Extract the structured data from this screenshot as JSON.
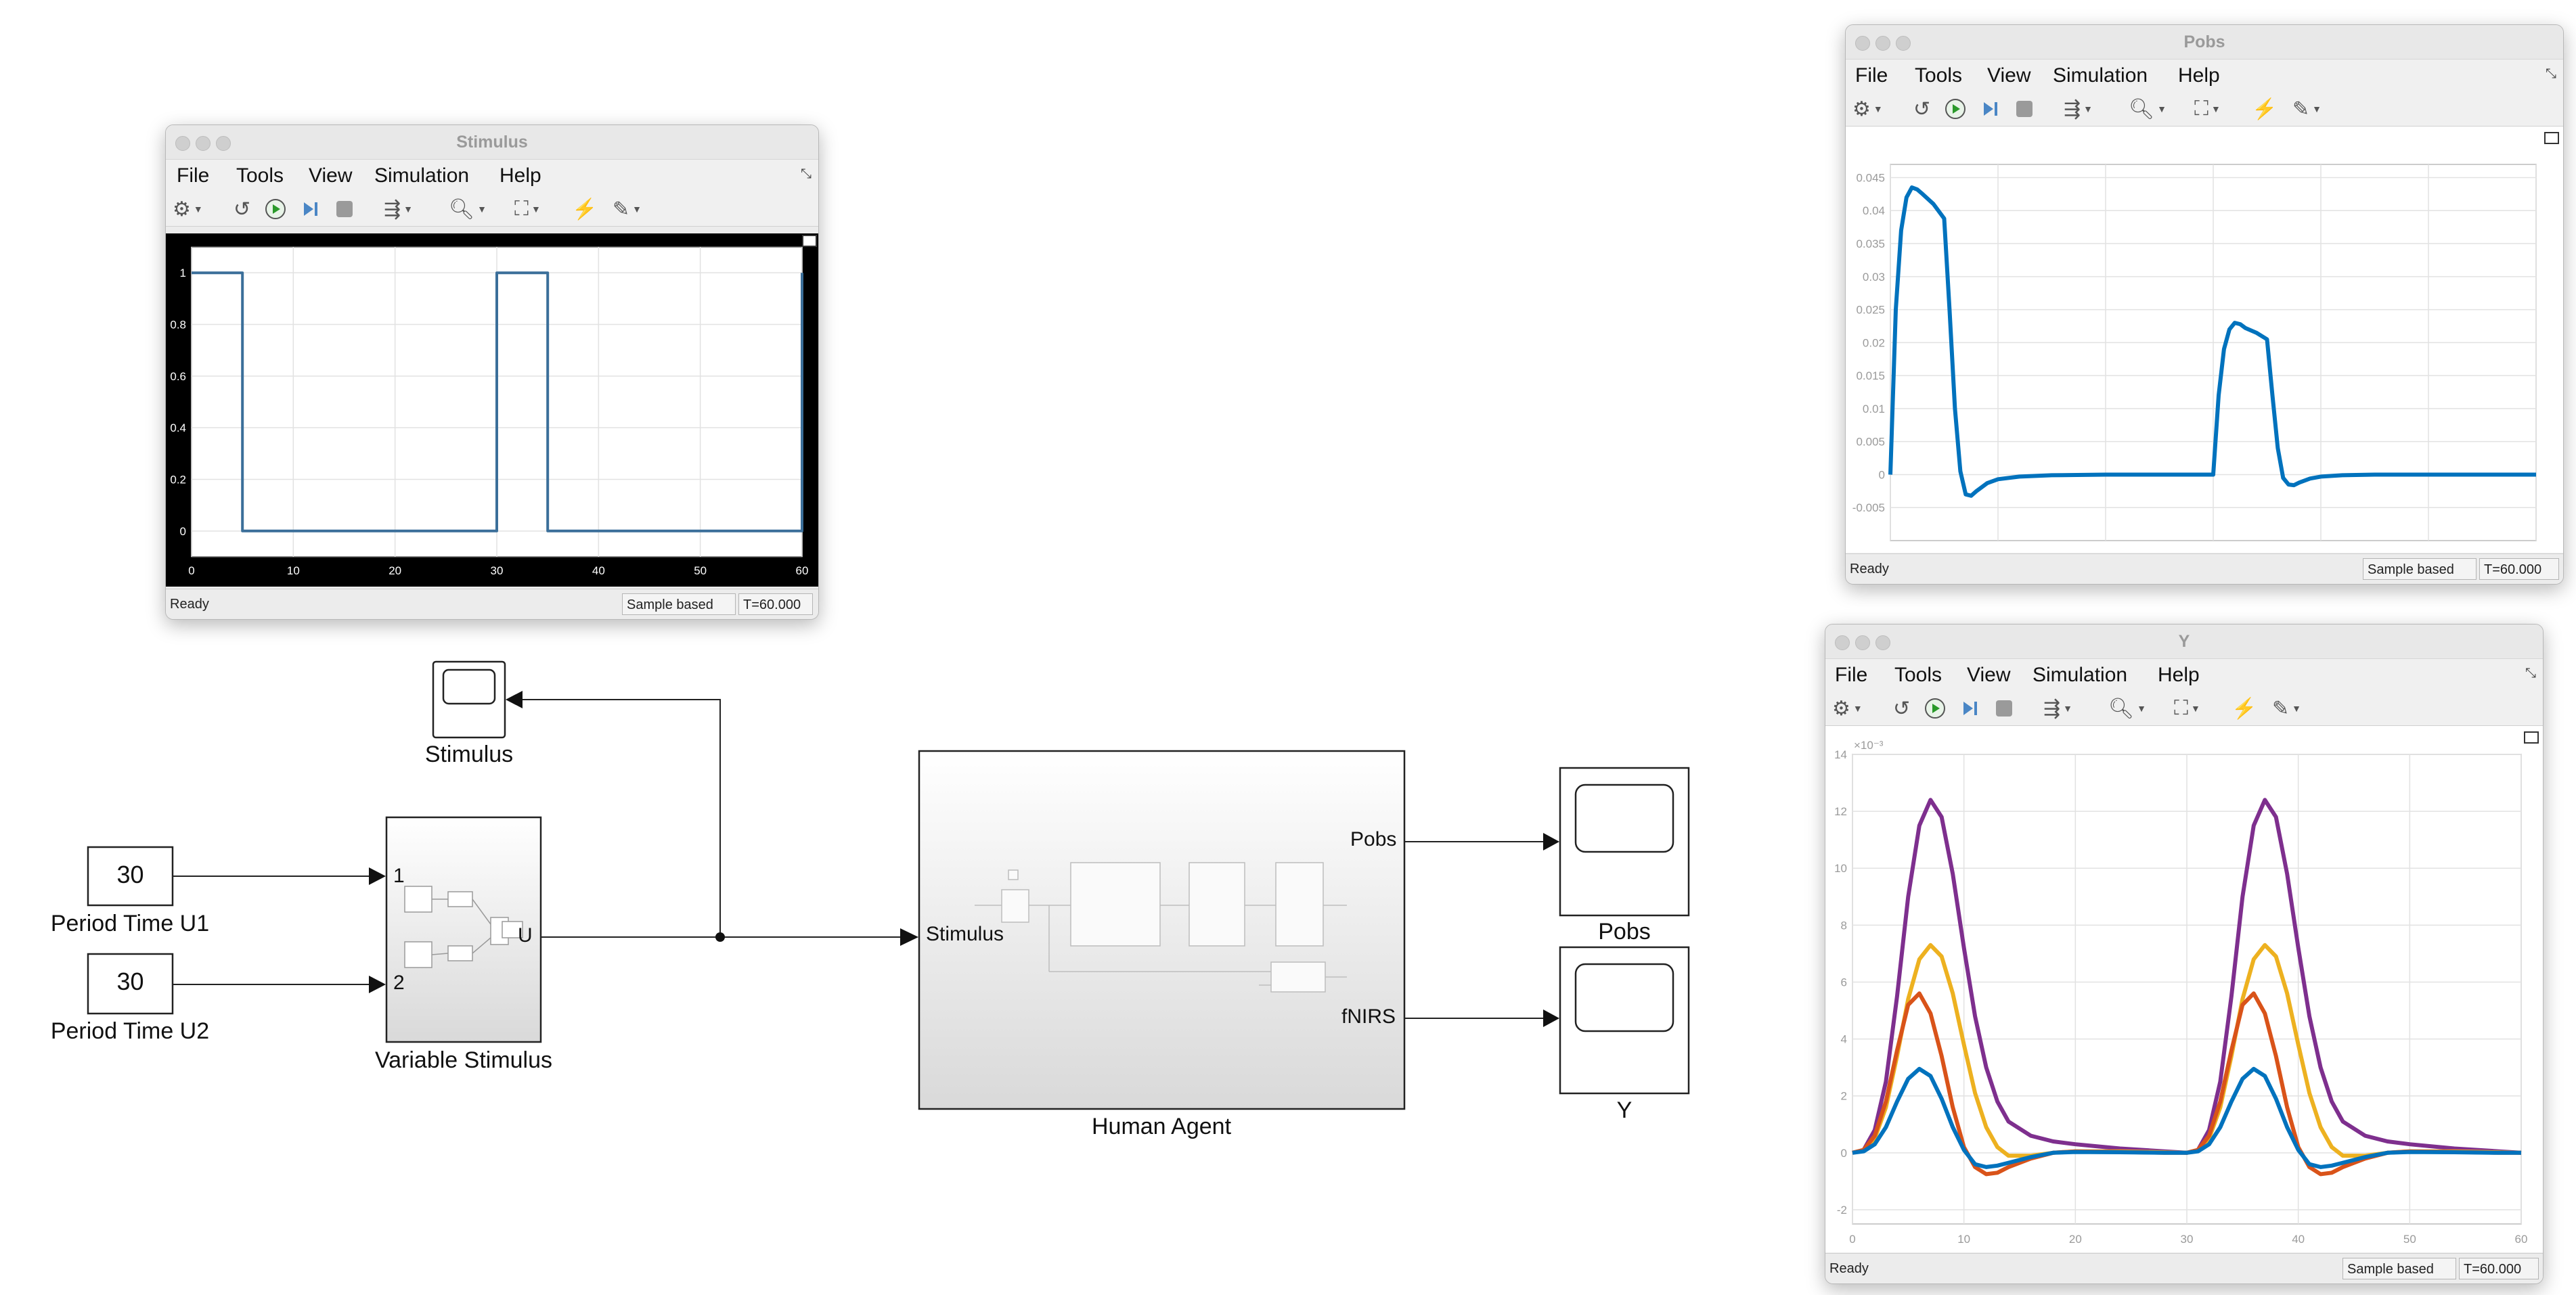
{
  "menu": [
    "File",
    "Tools",
    "View",
    "Simulation",
    "Help"
  ],
  "toolbar_icons": [
    "settings-icon",
    "restore-icon",
    "run-icon",
    "step-forward-icon",
    "stop-icon",
    "highlight-icon",
    "zoom-icon",
    "autoscale-icon",
    "triggers-icon",
    "measurements-icon"
  ],
  "windows": {
    "stimulus": {
      "title": "Stimulus",
      "status": {
        "ready": "Ready",
        "sample": "Sample based",
        "time": "T=60.000"
      },
      "xticks": [
        "0",
        "10",
        "20",
        "30",
        "40",
        "50",
        "60"
      ],
      "yticks": [
        "0",
        "0.2",
        "0.4",
        "0.6",
        "0.8",
        "1"
      ]
    },
    "pobs": {
      "title": "Pobs",
      "status": {
        "ready": "Ready",
        "sample": "Sample based",
        "time": "T=60.000"
      },
      "xticks": [
        "0",
        "10",
        "20",
        "30",
        "40",
        "50",
        "60"
      ],
      "yticks": [
        "-0.005",
        "0",
        "0.005",
        "0.01",
        "0.015",
        "0.02",
        "0.025",
        "0.03",
        "0.035",
        "0.04",
        "0.045"
      ]
    },
    "y": {
      "title": "Y",
      "status": {
        "ready": "Ready",
        "sample": "Sample based",
        "time": "T=60.000"
      },
      "xticks": [
        "0",
        "10",
        "20",
        "30",
        "40",
        "50",
        "60"
      ],
      "yticks": [
        "-2",
        "0",
        "2",
        "4",
        "6",
        "8",
        "10",
        "12",
        "14"
      ],
      "exponent": "×10⁻³"
    }
  },
  "blocks": {
    "const1": {
      "value": "30",
      "label": "Period Time U1"
    },
    "const2": {
      "value": "30",
      "label": "Period Time U2"
    },
    "variable_stimulus": {
      "label": "Variable Stimulus",
      "in1": "1",
      "in2": "2",
      "out": "U"
    },
    "stimulus_scope": {
      "label": "Stimulus"
    },
    "human_agent": {
      "label": "Human Agent",
      "in": "Stimulus",
      "out1": "Pobs",
      "out2": "fNIRS"
    },
    "pobs_scope": {
      "label": "Pobs"
    },
    "y_scope": {
      "label": "Y"
    }
  },
  "chart_data": [
    {
      "type": "line",
      "title": "Stimulus",
      "xlim": [
        0,
        60
      ],
      "ylim": [
        -0.1,
        1.1
      ],
      "grid": true,
      "background": "#000000",
      "series": [
        {
          "color": "#3b6f9a",
          "x": [
            0,
            5,
            5,
            30,
            30,
            35,
            35,
            60,
            60
          ],
          "y": [
            1,
            1,
            0,
            0,
            1,
            1,
            0,
            0,
            1
          ]
        }
      ]
    },
    {
      "type": "line",
      "title": "Pobs",
      "xlim": [
        0,
        60
      ],
      "ylim": [
        -0.01,
        0.047
      ],
      "grid": true,
      "series": [
        {
          "color": "#0072bd",
          "x": [
            0,
            0.5,
            1,
            1.5,
            2,
            2.5,
            3,
            4,
            5,
            5.5,
            6,
            6.5,
            7,
            7.5,
            8,
            9,
            10,
            12,
            15,
            20,
            25,
            30,
            30.5,
            31,
            31.5,
            32,
            32.5,
            33,
            34,
            35,
            35.5,
            36,
            36.5,
            37,
            37.5,
            38,
            39,
            40,
            42,
            45,
            50,
            55,
            60
          ],
          "y": [
            0,
            0.025,
            0.037,
            0.042,
            0.0435,
            0.0432,
            0.0425,
            0.041,
            0.0388,
            0.025,
            0.01,
            0.0005,
            -0.003,
            -0.0032,
            -0.0025,
            -0.0013,
            -0.0007,
            -0.0003,
            -0.0001,
            0,
            0,
            0,
            0.012,
            0.019,
            0.022,
            0.023,
            0.0228,
            0.0222,
            0.0215,
            0.0205,
            0.012,
            0.004,
            -0.0005,
            -0.0015,
            -0.0016,
            -0.0012,
            -0.0006,
            -0.0003,
            -0.0001,
            0,
            0,
            0,
            0
          ]
        }
      ]
    },
    {
      "type": "line",
      "title": "Y",
      "xlim": [
        0,
        60
      ],
      "ylim": [
        -2.5,
        14
      ],
      "grid": true,
      "series": [
        {
          "color": "#7e2f8e",
          "x": [
            0,
            1,
            2,
            3,
            4,
            5,
            6,
            7,
            8,
            9,
            10,
            11,
            12,
            13,
            14,
            16,
            18,
            20,
            24,
            28,
            30,
            31,
            32,
            33,
            34,
            35,
            36,
            37,
            38,
            39,
            40,
            41,
            42,
            43,
            44,
            46,
            48,
            50,
            54,
            58,
            60
          ],
          "y": [
            0,
            0.1,
            0.8,
            2.5,
            5.5,
            9,
            11.5,
            12.4,
            11.8,
            9.8,
            7.2,
            4.8,
            3,
            1.8,
            1.1,
            0.6,
            0.4,
            0.3,
            0.15,
            0.05,
            0,
            0.1,
            0.8,
            2.5,
            5.5,
            9,
            11.5,
            12.4,
            11.8,
            9.8,
            7.2,
            4.8,
            3,
            1.8,
            1.1,
            0.6,
            0.4,
            0.3,
            0.15,
            0.05,
            0
          ]
        },
        {
          "color": "#edb120",
          "x": [
            0,
            1,
            2,
            3,
            4,
            5,
            6,
            7,
            8,
            9,
            10,
            11,
            12,
            13,
            14,
            16,
            18,
            20,
            24,
            28,
            30,
            31,
            32,
            33,
            34,
            35,
            36,
            37,
            38,
            39,
            40,
            41,
            42,
            43,
            44,
            46,
            48,
            50,
            54,
            58,
            60
          ],
          "y": [
            0,
            0.1,
            0.5,
            1.6,
            3.4,
            5.4,
            6.8,
            7.3,
            6.9,
            5.6,
            3.8,
            2.1,
            0.9,
            0.2,
            -0.1,
            -0.1,
            0,
            0.05,
            0.05,
            0.02,
            0,
            0.1,
            0.5,
            1.6,
            3.4,
            5.4,
            6.8,
            7.3,
            6.9,
            5.6,
            3.8,
            2.1,
            0.9,
            0.2,
            -0.1,
            -0.1,
            0,
            0.05,
            0.05,
            0.02,
            0
          ]
        },
        {
          "color": "#d95319",
          "x": [
            0,
            1,
            2,
            3,
            4,
            5,
            6,
            7,
            8,
            9,
            10,
            11,
            12,
            13,
            14,
            16,
            18,
            20,
            24,
            28,
            30,
            31,
            32,
            33,
            34,
            35,
            36,
            37,
            38,
            39,
            40,
            41,
            42,
            43,
            44,
            46,
            48,
            50,
            54,
            58,
            60
          ],
          "y": [
            0,
            0.1,
            0.6,
            1.8,
            3.6,
            5.2,
            5.6,
            4.9,
            3.4,
            1.6,
            0.2,
            -0.5,
            -0.75,
            -0.7,
            -0.5,
            -0.2,
            0,
            0.05,
            0.03,
            0,
            0,
            0.1,
            0.6,
            1.8,
            3.6,
            5.2,
            5.6,
            4.9,
            3.4,
            1.6,
            0.2,
            -0.5,
            -0.75,
            -0.7,
            -0.5,
            -0.2,
            0,
            0.05,
            0.03,
            0,
            0
          ]
        },
        {
          "color": "#0072bd",
          "x": [
            0,
            1,
            2,
            3,
            4,
            5,
            6,
            7,
            8,
            9,
            10,
            11,
            12,
            13,
            14,
            16,
            18,
            20,
            24,
            28,
            30,
            31,
            32,
            33,
            34,
            35,
            36,
            37,
            38,
            39,
            40,
            41,
            42,
            43,
            44,
            46,
            48,
            50,
            54,
            58,
            60
          ],
          "y": [
            0,
            0.05,
            0.3,
            0.9,
            1.8,
            2.6,
            2.95,
            2.7,
            1.9,
            0.9,
            0.1,
            -0.4,
            -0.5,
            -0.45,
            -0.35,
            -0.15,
            0,
            0.03,
            0.02,
            0,
            0,
            0.05,
            0.3,
            0.9,
            1.8,
            2.6,
            2.95,
            2.7,
            1.9,
            0.9,
            0.1,
            -0.4,
            -0.5,
            -0.45,
            -0.35,
            -0.15,
            0,
            0.03,
            0.02,
            0,
            0
          ]
        }
      ]
    }
  ]
}
